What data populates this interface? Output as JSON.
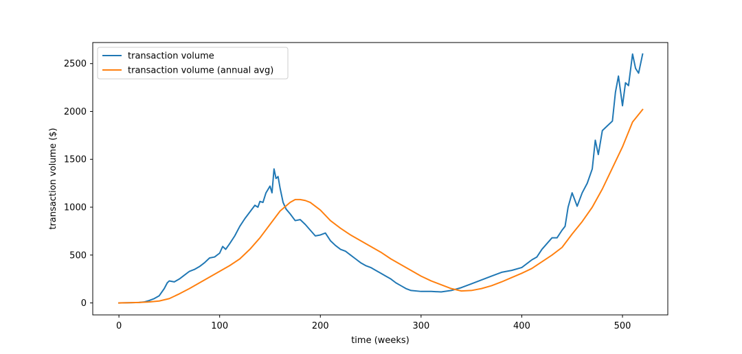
{
  "chart_data": {
    "type": "line",
    "xlabel": "time (weeks)",
    "ylabel": "transaction volume ($)",
    "xlim": [
      -26,
      545
    ],
    "ylim": [
      -125,
      2720
    ],
    "xticks": [
      0,
      100,
      200,
      300,
      400,
      500
    ],
    "yticks": [
      0,
      500,
      1000,
      1500,
      2000,
      2500
    ],
    "grid": false,
    "legend_position": "top-left",
    "series": [
      {
        "name": "transaction volume",
        "color": "#1f77b4",
        "x": [
          0,
          10,
          20,
          25,
          30,
          35,
          40,
          45,
          48,
          50,
          55,
          60,
          65,
          70,
          75,
          80,
          85,
          90,
          95,
          100,
          103,
          106,
          110,
          115,
          120,
          125,
          130,
          135,
          138,
          140,
          143,
          146,
          150,
          152,
          154,
          156,
          158,
          160,
          163,
          166,
          170,
          175,
          180,
          185,
          190,
          195,
          200,
          205,
          210,
          215,
          220,
          225,
          230,
          235,
          240,
          245,
          250,
          255,
          260,
          265,
          270,
          275,
          280,
          285,
          290,
          300,
          310,
          320,
          330,
          340,
          350,
          360,
          370,
          380,
          390,
          400,
          410,
          415,
          420,
          425,
          430,
          435,
          440,
          443,
          446,
          450,
          455,
          460,
          465,
          470,
          473,
          476,
          480,
          485,
          490,
          493,
          496,
          500,
          503,
          506,
          510,
          513,
          516,
          520
        ],
        "y": [
          0,
          2,
          5,
          10,
          25,
          45,
          75,
          150,
          210,
          230,
          220,
          250,
          290,
          330,
          350,
          380,
          420,
          470,
          480,
          520,
          590,
          560,
          620,
          700,
          800,
          880,
          950,
          1020,
          1000,
          1060,
          1050,
          1150,
          1220,
          1150,
          1400,
          1300,
          1320,
          1200,
          1050,
          980,
          930,
          860,
          870,
          820,
          760,
          700,
          710,
          730,
          650,
          600,
          560,
          540,
          500,
          460,
          420,
          390,
          370,
          340,
          310,
          280,
          250,
          210,
          180,
          150,
          130,
          120,
          120,
          115,
          130,
          160,
          200,
          240,
          280,
          320,
          340,
          370,
          450,
          480,
          560,
          620,
          680,
          680,
          760,
          800,
          1000,
          1150,
          1010,
          1150,
          1250,
          1400,
          1700,
          1550,
          1800,
          1850,
          1900,
          2200,
          2370,
          2060,
          2300,
          2270,
          2600,
          2450,
          2400,
          2600
        ]
      },
      {
        "name": "transaction volume (annual avg)",
        "color": "#ff7f0e",
        "x": [
          0,
          10,
          20,
          30,
          40,
          50,
          60,
          70,
          80,
          90,
          100,
          110,
          120,
          130,
          140,
          150,
          160,
          170,
          175,
          180,
          185,
          190,
          200,
          210,
          220,
          230,
          240,
          250,
          260,
          270,
          280,
          290,
          300,
          310,
          320,
          330,
          340,
          350,
          360,
          370,
          380,
          390,
          400,
          410,
          420,
          430,
          440,
          450,
          460,
          470,
          480,
          490,
          500,
          510,
          520
        ],
        "y": [
          0,
          2,
          5,
          10,
          20,
          45,
          95,
          150,
          210,
          270,
          330,
          390,
          460,
          560,
          680,
          820,
          960,
          1050,
          1080,
          1080,
          1070,
          1050,
          970,
          860,
          780,
          710,
          650,
          590,
          530,
          460,
          400,
          340,
          280,
          230,
          190,
          150,
          125,
          130,
          150,
          180,
          220,
          265,
          310,
          360,
          430,
          500,
          580,
          720,
          850,
          1000,
          1190,
          1410,
          1630,
          1890,
          2020
        ]
      }
    ]
  }
}
